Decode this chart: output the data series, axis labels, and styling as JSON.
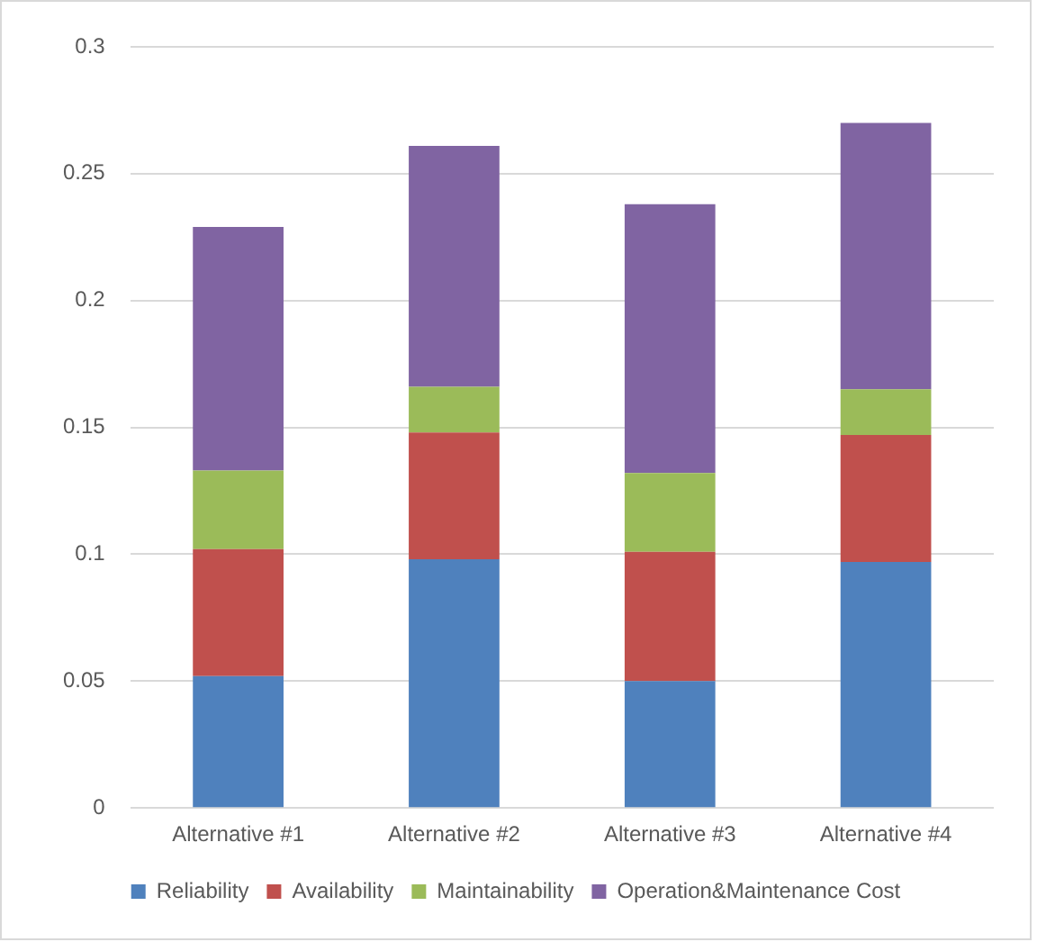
{
  "chart_data": {
    "type": "bar",
    "stacked": true,
    "categories": [
      "Alternative #1",
      "Alternative #2",
      "Alternative #3",
      "Alternative #4"
    ],
    "series": [
      {
        "name": "Reliability",
        "color": "#4f81bd",
        "values": [
          0.052,
          0.098,
          0.05,
          0.097
        ]
      },
      {
        "name": "Availability",
        "color": "#c0504d",
        "values": [
          0.05,
          0.05,
          0.051,
          0.05
        ]
      },
      {
        "name": "Maintainability",
        "color": "#9bbb59",
        "values": [
          0.031,
          0.018,
          0.031,
          0.018
        ]
      },
      {
        "name": "Operation&Maintenance Cost",
        "color": "#8064a2",
        "values": [
          0.096,
          0.095,
          0.106,
          0.105
        ]
      }
    ],
    "ylim": [
      0,
      0.3
    ],
    "yticks": [
      0,
      0.05,
      0.1,
      0.15,
      0.2,
      0.25,
      0.3
    ],
    "grid": "y",
    "legend": "bottom"
  }
}
